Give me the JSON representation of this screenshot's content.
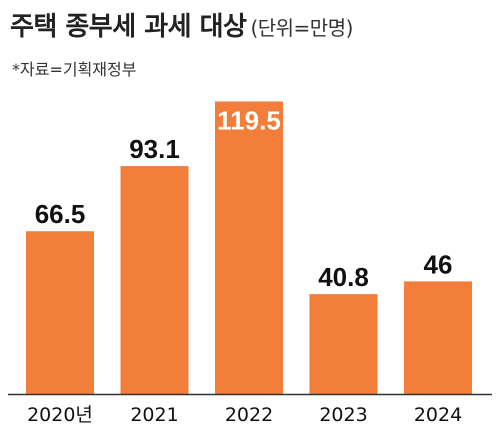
{
  "header": {
    "title": "주택 종부세 과세 대상",
    "unit": "(단위=만명)",
    "source": "*자료=기획재정부"
  },
  "colors": {
    "bar": "#f27e3a",
    "axis": "#333333",
    "label": "#111111",
    "inside_label": "#ffffff"
  },
  "chart_data": {
    "type": "bar",
    "title": "주택 종부세 과세 대상",
    "unit": "만명",
    "categories": [
      "2020년",
      "2021",
      "2022",
      "2023",
      "2024"
    ],
    "values": [
      66.5,
      93.1,
      119.5,
      40.8,
      46
    ],
    "value_labels": [
      "66.5",
      "93.1",
      "119.5",
      "40.8",
      "46"
    ],
    "label_inside": [
      false,
      false,
      true,
      false,
      false
    ],
    "ylim": [
      0,
      125
    ],
    "grid": false,
    "legend": "none"
  }
}
